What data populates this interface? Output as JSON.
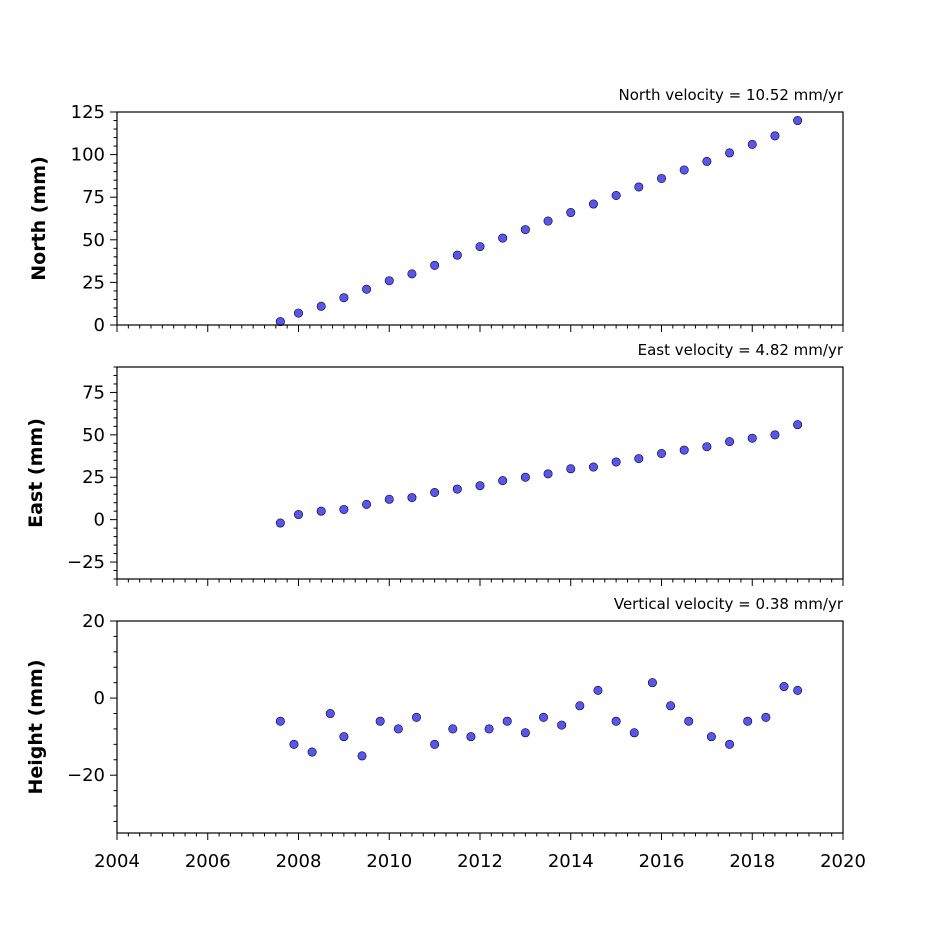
{
  "chart_data": [
    {
      "type": "scatter",
      "title": "North velocity = 10.52 mm/yr",
      "ylabel": "North (mm)",
      "xlim": [
        2004,
        2020
      ],
      "ylim": [
        0,
        125
      ],
      "yticks": [
        0,
        25,
        50,
        75,
        100,
        125
      ],
      "xticks": [
        2004,
        2006,
        2008,
        2010,
        2012,
        2014,
        2016,
        2018,
        2020
      ],
      "show_xtick_labels": false,
      "grid": false,
      "point_color": "#5555ff",
      "edge_color": "#000000",
      "series": [
        {
          "x": [
            2007.6,
            2008.0,
            2008.5,
            2009.0,
            2009.5,
            2010.0,
            2010.5,
            2011.0,
            2011.5,
            2012.0,
            2012.5,
            2013.0,
            2013.5,
            2014.0,
            2014.5,
            2015.0,
            2015.5,
            2016.0,
            2016.5,
            2017.0,
            2017.5,
            2018.0,
            2018.5,
            2019.0
          ],
          "y": [
            2,
            7,
            11,
            16,
            21,
            26,
            30,
            35,
            41,
            46,
            51,
            56,
            61,
            66,
            71,
            76,
            81,
            86,
            91,
            96,
            101,
            106,
            111,
            120
          ]
        }
      ]
    },
    {
      "type": "scatter",
      "title": "East velocity = 4.82 mm/yr",
      "ylabel": "East (mm)",
      "xlim": [
        2004,
        2020
      ],
      "ylim": [
        -35,
        90
      ],
      "yticks": [
        -25,
        0,
        25,
        50,
        75
      ],
      "xticks": [
        2004,
        2006,
        2008,
        2010,
        2012,
        2014,
        2016,
        2018,
        2020
      ],
      "show_xtick_labels": false,
      "grid": false,
      "point_color": "#5555ff",
      "edge_color": "#000000",
      "series": [
        {
          "x": [
            2007.6,
            2008.0,
            2008.5,
            2009.0,
            2009.5,
            2010.0,
            2010.5,
            2011.0,
            2011.5,
            2012.0,
            2012.5,
            2013.0,
            2013.5,
            2014.0,
            2014.5,
            2015.0,
            2015.5,
            2016.0,
            2016.5,
            2017.0,
            2017.5,
            2018.0,
            2018.5,
            2019.0
          ],
          "y": [
            -2,
            3,
            5,
            6,
            9,
            12,
            13,
            16,
            18,
            20,
            23,
            25,
            27,
            30,
            31,
            34,
            36,
            39,
            41,
            43,
            46,
            48,
            50,
            56
          ]
        }
      ]
    },
    {
      "type": "scatter",
      "title": "Vertical velocity = 0.38 mm/yr",
      "ylabel": "Height (mm)",
      "xlim": [
        2004,
        2020
      ],
      "ylim": [
        -35,
        20
      ],
      "yticks": [
        -20,
        0,
        20
      ],
      "xticks": [
        2004,
        2006,
        2008,
        2010,
        2012,
        2014,
        2016,
        2018,
        2020
      ],
      "show_xtick_labels": true,
      "grid": false,
      "point_color": "#5555ff",
      "edge_color": "#000000",
      "series": [
        {
          "x": [
            2007.6,
            2007.9,
            2008.3,
            2008.7,
            2009.0,
            2009.4,
            2009.8,
            2010.2,
            2010.6,
            2011.0,
            2011.4,
            2011.8,
            2012.2,
            2012.6,
            2013.0,
            2013.4,
            2013.8,
            2014.2,
            2014.6,
            2015.0,
            2015.4,
            2015.8,
            2016.2,
            2016.6,
            2017.1,
            2017.5,
            2017.9,
            2018.3,
            2018.7,
            2019.0
          ],
          "y": [
            -6,
            -12,
            -14,
            -4,
            -10,
            -15,
            -6,
            -8,
            -5,
            -12,
            -8,
            -10,
            -8,
            -6,
            -9,
            -5,
            -7,
            -2,
            2,
            -6,
            -9,
            4,
            -2,
            -6,
            -10,
            -12,
            -6,
            -5,
            3,
            2
          ]
        }
      ]
    }
  ]
}
